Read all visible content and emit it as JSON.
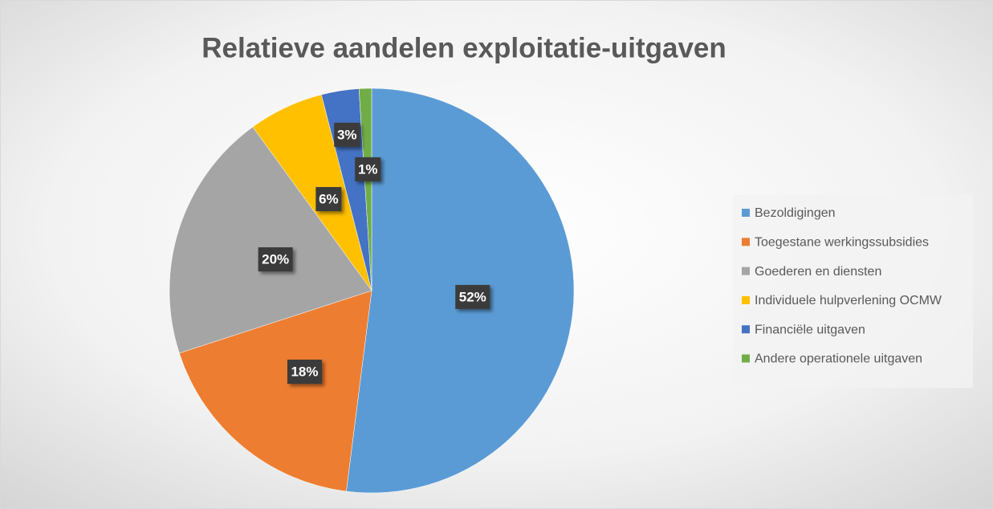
{
  "chart_data": {
    "type": "pie",
    "title": "Relatieve aandelen exploitatie-uitgaven",
    "categories": [
      "Bezoldigingen",
      "Toegestane werkingssubsidies",
      "Goederen en diensten",
      "Individuele hulpverlening OCMW",
      "Financiële uitgaven",
      "Andere operationele uitgaven"
    ],
    "values": [
      52,
      18,
      20,
      6,
      3,
      1
    ],
    "value_labels": [
      "52%",
      "18%",
      "20%",
      "6%",
      "3%",
      "1%"
    ],
    "colors": [
      "#5b9bd5",
      "#ed7d31",
      "#a5a5a5",
      "#ffc000",
      "#4472c4",
      "#70ad47"
    ],
    "legend": "right"
  }
}
